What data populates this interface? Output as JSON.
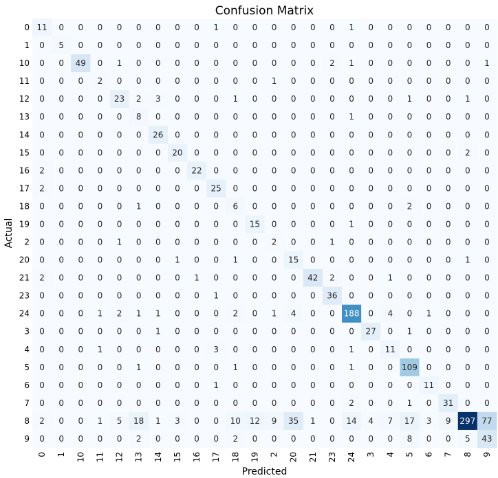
{
  "chart_data": {
    "type": "heatmap",
    "title": "Confusion Matrix",
    "xlabel": "Predicted",
    "ylabel": "Actual",
    "colormap": "Blues",
    "colorbar": false,
    "labels": [
      "0",
      "1",
      "10",
      "11",
      "12",
      "13",
      "14",
      "15",
      "16",
      "17",
      "18",
      "19",
      "2",
      "20",
      "21",
      "23",
      "24",
      "3",
      "4",
      "5",
      "6",
      "7",
      "8",
      "9"
    ],
    "matrix": [
      [
        11,
        0,
        0,
        0,
        0,
        0,
        0,
        0,
        0,
        1,
        0,
        0,
        0,
        0,
        0,
        0,
        1,
        0,
        0,
        0,
        0,
        0,
        0,
        0
      ],
      [
        0,
        5,
        0,
        0,
        0,
        0,
        0,
        0,
        0,
        0,
        0,
        0,
        0,
        0,
        0,
        0,
        0,
        0,
        0,
        0,
        0,
        0,
        0,
        0
      ],
      [
        0,
        0,
        49,
        0,
        1,
        0,
        0,
        0,
        0,
        0,
        0,
        0,
        0,
        0,
        0,
        2,
        1,
        0,
        0,
        0,
        0,
        0,
        0,
        1
      ],
      [
        0,
        0,
        0,
        2,
        0,
        0,
        0,
        0,
        0,
        0,
        0,
        0,
        1,
        0,
        0,
        0,
        0,
        0,
        0,
        0,
        0,
        0,
        0,
        0
      ],
      [
        0,
        0,
        0,
        0,
        23,
        2,
        3,
        0,
        0,
        0,
        1,
        0,
        0,
        0,
        0,
        0,
        0,
        0,
        0,
        1,
        0,
        0,
        1,
        0
      ],
      [
        0,
        0,
        0,
        0,
        0,
        8,
        0,
        0,
        0,
        0,
        0,
        0,
        0,
        0,
        0,
        0,
        1,
        0,
        0,
        0,
        0,
        0,
        0,
        0
      ],
      [
        0,
        0,
        0,
        0,
        0,
        0,
        26,
        0,
        0,
        0,
        0,
        0,
        0,
        0,
        0,
        0,
        0,
        0,
        0,
        0,
        0,
        0,
        0,
        0
      ],
      [
        0,
        0,
        0,
        0,
        0,
        0,
        0,
        20,
        0,
        0,
        0,
        0,
        0,
        0,
        0,
        0,
        0,
        0,
        0,
        0,
        0,
        0,
        2,
        0
      ],
      [
        2,
        0,
        0,
        0,
        0,
        0,
        0,
        0,
        22,
        0,
        0,
        0,
        0,
        0,
        0,
        0,
        0,
        0,
        0,
        0,
        0,
        0,
        0,
        0
      ],
      [
        2,
        0,
        0,
        0,
        0,
        0,
        0,
        0,
        0,
        25,
        0,
        0,
        0,
        0,
        0,
        0,
        0,
        0,
        0,
        0,
        0,
        0,
        0,
        0
      ],
      [
        0,
        0,
        0,
        0,
        0,
        1,
        0,
        0,
        0,
        0,
        6,
        0,
        0,
        0,
        0,
        0,
        0,
        0,
        0,
        2,
        0,
        0,
        0,
        0
      ],
      [
        0,
        0,
        0,
        0,
        0,
        0,
        0,
        0,
        0,
        0,
        0,
        15,
        0,
        0,
        0,
        0,
        1,
        0,
        0,
        0,
        0,
        0,
        0,
        0
      ],
      [
        0,
        0,
        0,
        0,
        1,
        0,
        0,
        0,
        0,
        0,
        0,
        0,
        2,
        0,
        0,
        1,
        0,
        0,
        0,
        0,
        0,
        0,
        0,
        0
      ],
      [
        0,
        0,
        0,
        0,
        0,
        0,
        0,
        1,
        0,
        0,
        1,
        0,
        0,
        15,
        0,
        0,
        0,
        0,
        0,
        0,
        0,
        0,
        1,
        0
      ],
      [
        2,
        0,
        0,
        0,
        0,
        0,
        0,
        0,
        1,
        0,
        0,
        0,
        0,
        0,
        42,
        2,
        0,
        0,
        1,
        0,
        0,
        0,
        0,
        0
      ],
      [
        0,
        0,
        0,
        0,
        0,
        0,
        0,
        0,
        0,
        1,
        0,
        0,
        0,
        0,
        0,
        36,
        0,
        0,
        0,
        0,
        0,
        0,
        0,
        0
      ],
      [
        0,
        0,
        0,
        1,
        2,
        1,
        1,
        0,
        0,
        0,
        2,
        0,
        1,
        4,
        0,
        0,
        188,
        0,
        4,
        0,
        1,
        0,
        0,
        0
      ],
      [
        0,
        0,
        0,
        0,
        0,
        0,
        1,
        0,
        0,
        0,
        0,
        0,
        0,
        0,
        0,
        0,
        0,
        27,
        0,
        1,
        0,
        0,
        0,
        0
      ],
      [
        0,
        0,
        0,
        1,
        0,
        0,
        0,
        0,
        0,
        3,
        0,
        0,
        0,
        0,
        0,
        0,
        1,
        0,
        11,
        0,
        0,
        0,
        0,
        0
      ],
      [
        0,
        0,
        0,
        0,
        0,
        1,
        0,
        0,
        0,
        0,
        1,
        0,
        0,
        0,
        0,
        0,
        1,
        0,
        0,
        109,
        0,
        0,
        0,
        0
      ],
      [
        0,
        0,
        0,
        0,
        0,
        0,
        0,
        0,
        0,
        1,
        0,
        0,
        0,
        0,
        0,
        0,
        0,
        0,
        0,
        0,
        11,
        0,
        0,
        0
      ],
      [
        0,
        0,
        0,
        0,
        0,
        0,
        0,
        0,
        0,
        0,
        0,
        0,
        0,
        0,
        0,
        0,
        2,
        0,
        0,
        1,
        0,
        31,
        0,
        0
      ],
      [
        2,
        0,
        0,
        1,
        5,
        18,
        1,
        3,
        0,
        0,
        10,
        12,
        9,
        35,
        1,
        0,
        14,
        4,
        7,
        17,
        3,
        9,
        297,
        77
      ],
      [
        0,
        0,
        0,
        0,
        0,
        2,
        0,
        0,
        0,
        0,
        2,
        0,
        0,
        0,
        0,
        0,
        0,
        0,
        0,
        8,
        0,
        0,
        5,
        43
      ]
    ]
  }
}
